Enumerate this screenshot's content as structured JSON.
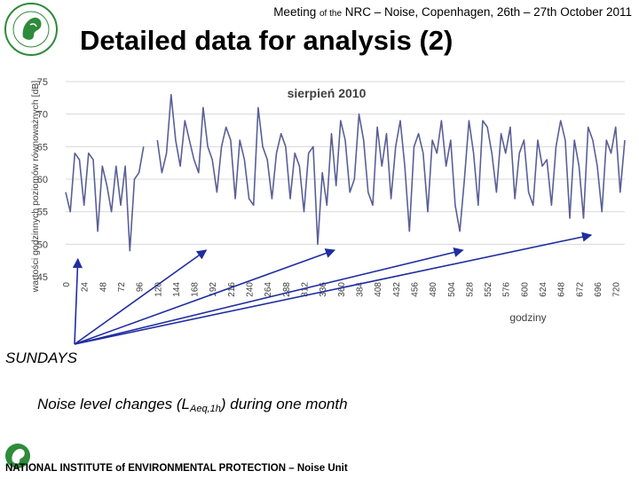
{
  "header": {
    "meeting_pre": "Meeting",
    "meeting_of": "of the",
    "meeting_post": "NRC – Noise, Copenhagen, 26th – 27th October 2011"
  },
  "slide_title": "Detailed data for analysis (2)",
  "annotation": {
    "sundays": "SUNDAYS"
  },
  "caption": {
    "text_pre": "Noise level changes (L",
    "sub": "Aeq,1h",
    "text_post": ") during one month"
  },
  "footer": {
    "text": "NATIONAL INSTITUTE of ENVIRONMENTAL PROTECTION – Noise Unit"
  },
  "colors": {
    "series": "#5a5f96",
    "arrows": "#1f2da0",
    "grid": "#d9d9d9"
  },
  "chart_data": {
    "type": "line",
    "title": "sierpień 2010",
    "xlabel": "godziny",
    "ylabel": "wartości godzinnych poziomów równoważnych [dB]",
    "ylim": [
      45,
      75
    ],
    "y_ticks": [
      45,
      50,
      55,
      60,
      65,
      70,
      75
    ],
    "xlim": [
      0,
      732
    ],
    "x_ticks": [
      0,
      24,
      48,
      72,
      96,
      120,
      144,
      168,
      192,
      216,
      240,
      264,
      288,
      312,
      336,
      360,
      384,
      408,
      432,
      456,
      480,
      504,
      528,
      552,
      576,
      600,
      624,
      648,
      672,
      696,
      720
    ],
    "x_tick_labels": [
      "0",
      "24",
      "48",
      "72",
      "96",
      "120",
      "144",
      "168",
      "192",
      "216",
      "240",
      "264",
      "288",
      "312",
      "336",
      "360",
      "384",
      "408",
      "432",
      "456",
      "480",
      "504",
      "528",
      "552",
      "576",
      "600",
      "624",
      "648",
      "672",
      "696",
      "720"
    ],
    "grid": "horizontal",
    "sunday_days": [
      1,
      8,
      15,
      22,
      29
    ],
    "series": [
      {
        "name": "",
        "x_start": 0,
        "x_step": 6,
        "values": [
          58,
          55,
          64,
          63,
          56,
          64,
          63,
          52,
          62,
          59,
          55,
          62,
          56,
          62,
          49,
          60,
          61,
          65,
          null,
          null,
          66,
          61,
          64,
          73,
          66,
          62,
          69,
          66,
          63,
          61,
          71,
          65,
          63,
          58,
          65,
          68,
          66,
          57,
          66,
          63,
          57,
          56,
          71,
          65,
          63,
          57,
          64,
          67,
          65,
          57,
          64,
          62,
          55,
          64,
          65,
          50,
          61,
          56,
          67,
          59,
          69,
          66,
          58,
          60,
          70,
          66,
          58,
          56,
          68,
          62,
          67,
          57,
          65,
          69,
          62,
          52,
          65,
          67,
          64,
          55,
          66,
          64,
          69,
          62,
          66,
          56,
          52,
          60,
          69,
          64,
          56,
          69,
          68,
          64,
          58,
          67,
          64,
          68,
          57,
          64,
          66,
          58,
          56,
          66,
          62,
          63,
          56,
          65,
          69,
          66,
          54,
          66,
          62,
          54,
          68,
          66,
          62,
          55,
          66,
          64,
          68,
          58,
          66
        ]
      }
    ]
  }
}
